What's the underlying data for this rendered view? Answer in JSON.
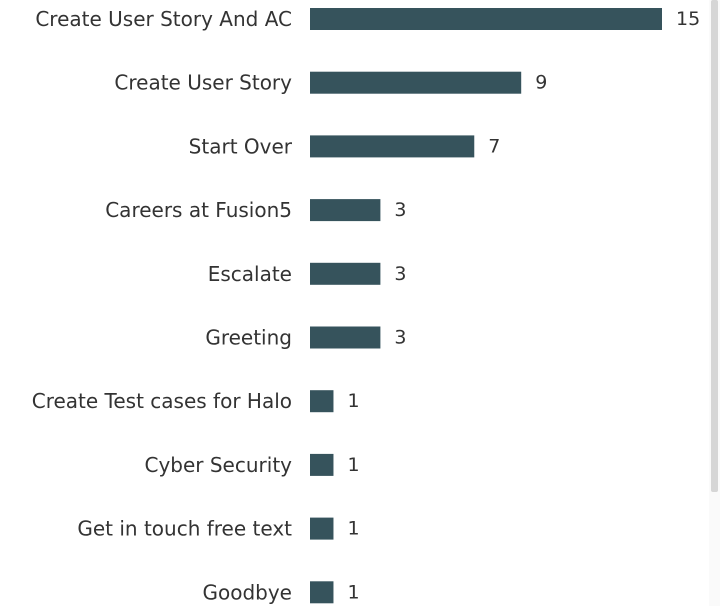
{
  "chart_data": {
    "type": "bar",
    "orientation": "horizontal",
    "categories": [
      "Create User Story And AC",
      "Create User Story",
      "Start Over",
      "Careers at Fusion5",
      "Escalate",
      "Greeting",
      "Create Test cases for Halo",
      "Cyber Security",
      "Get in touch free text",
      "Goodbye"
    ],
    "values": [
      15,
      9,
      7,
      3,
      3,
      3,
      1,
      1,
      1,
      1
    ],
    "title": "",
    "xlabel": "",
    "ylabel": "",
    "xlim": [
      0,
      15
    ],
    "grid": false,
    "data_labels": true,
    "bar_color": "#36535c"
  }
}
